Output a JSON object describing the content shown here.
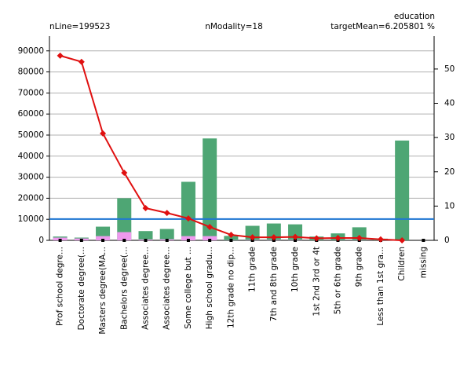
{
  "chart_data": {
    "type": "bar",
    "header": {
      "title": "education",
      "left": "nLine=199523",
      "center": "nModality=18",
      "right": "targetMean=6.205801 %"
    },
    "categories": [
      "Prof school degre...",
      "Doctorate degree(...",
      "Masters degree(MA...",
      "Bachelors degree(...",
      "Associates degree...",
      "Associates degree...",
      "Some college but ...",
      "High school gradu...",
      "12th grade no dip...",
      "11th grade",
      "7th and 8th grade",
      "10th grade",
      "1st 2nd 3rd or 4t",
      "5th or 6th grade",
      "9th grade",
      "Less than 1st gra...",
      "Children",
      "missing"
    ],
    "series": [
      {
        "color": "#4ea674",
        "values": [
          1800,
          1300,
          6500,
          20000,
          4400,
          5400,
          27800,
          48400,
          2100,
          6900,
          8000,
          7600,
          1800,
          3300,
          6200,
          800,
          47400,
          0
        ]
      },
      {
        "color": "#ee99ee",
        "values": [
          1300,
          900,
          2000,
          3900,
          400,
          500,
          2000,
          2000,
          100,
          200,
          200,
          200,
          50,
          50,
          100,
          10,
          0,
          0
        ]
      },
      {
        "type": "line",
        "axis": "y2",
        "color": "#e01010",
        "values": [
          53.9,
          52.1,
          31.2,
          19.7,
          9.4,
          8.0,
          6.4,
          3.9,
          1.6,
          0.9,
          0.9,
          1.0,
          0.6,
          0.7,
          0.7,
          0.3,
          0.0,
          null
        ]
      }
    ],
    "reference_line": {
      "value": 6.205801,
      "axis": "y2",
      "color": "#1f77d4"
    },
    "ylim": [
      0,
      97000
    ],
    "yticks": [
      0,
      10000,
      20000,
      30000,
      40000,
      50000,
      60000,
      70000,
      80000,
      90000
    ],
    "y2lim": [
      0,
      59.6
    ],
    "y2ticks": [
      0,
      10,
      20,
      30,
      40,
      50
    ],
    "grid": true
  }
}
